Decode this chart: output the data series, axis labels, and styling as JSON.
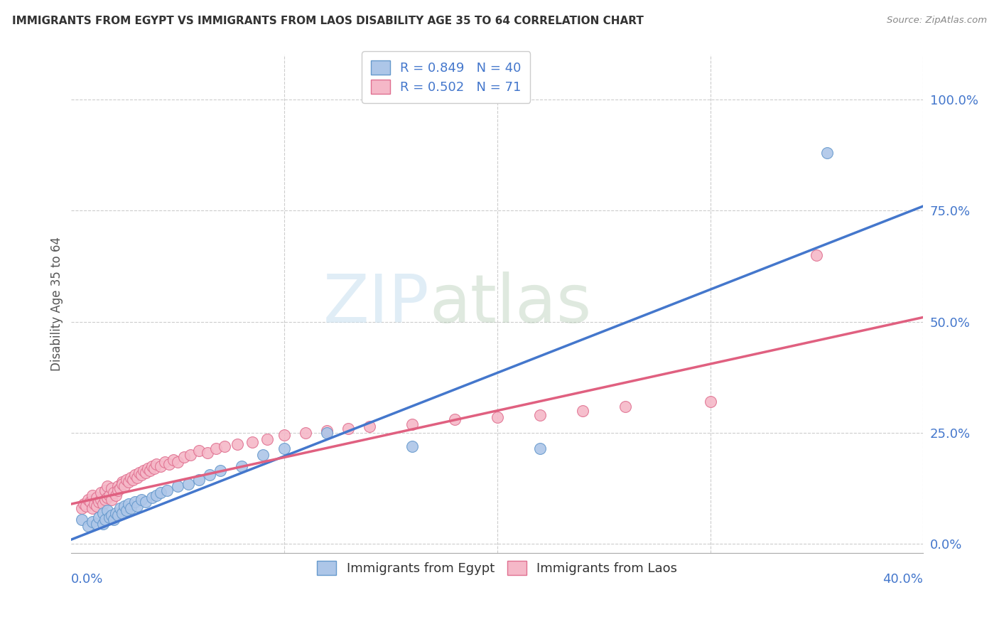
{
  "title": "IMMIGRANTS FROM EGYPT VS IMMIGRANTS FROM LAOS DISABILITY AGE 35 TO 64 CORRELATION CHART",
  "source": "Source: ZipAtlas.com",
  "ylabel": "Disability Age 35 to 64",
  "ytick_labels": [
    "0.0%",
    "25.0%",
    "50.0%",
    "75.0%",
    "100.0%"
  ],
  "ytick_values": [
    0.0,
    0.25,
    0.5,
    0.75,
    1.0
  ],
  "xlim": [
    0.0,
    0.4
  ],
  "ylim": [
    -0.02,
    1.1
  ],
  "egypt_color": "#adc6e8",
  "egypt_edge": "#6699cc",
  "laos_color": "#f5b8c8",
  "laos_edge": "#e07090",
  "egypt_line_color": "#4477cc",
  "laos_line_color": "#e06080",
  "R_egypt": 0.849,
  "N_egypt": 40,
  "R_laos": 0.502,
  "N_laos": 71,
  "watermark_zip": "ZIP",
  "watermark_atlas": "atlas",
  "egypt_line_x0": 0.0,
  "egypt_line_y0": 0.01,
  "egypt_line_x1": 0.4,
  "egypt_line_y1": 0.76,
  "laos_line_x0": 0.0,
  "laos_line_y0": 0.09,
  "laos_line_x1": 0.4,
  "laos_line_y1": 0.51,
  "egypt_x": [
    0.005,
    0.008,
    0.01,
    0.012,
    0.013,
    0.015,
    0.015,
    0.016,
    0.017,
    0.018,
    0.019,
    0.02,
    0.021,
    0.022,
    0.023,
    0.024,
    0.025,
    0.026,
    0.027,
    0.028,
    0.03,
    0.031,
    0.033,
    0.035,
    0.038,
    0.04,
    0.042,
    0.045,
    0.05,
    0.055,
    0.06,
    0.065,
    0.07,
    0.08,
    0.09,
    0.1,
    0.12,
    0.16,
    0.22,
    0.355
  ],
  "egypt_y": [
    0.055,
    0.04,
    0.05,
    0.045,
    0.06,
    0.045,
    0.07,
    0.055,
    0.075,
    0.06,
    0.065,
    0.055,
    0.07,
    0.065,
    0.08,
    0.07,
    0.085,
    0.075,
    0.09,
    0.08,
    0.095,
    0.085,
    0.1,
    0.095,
    0.105,
    0.11,
    0.115,
    0.12,
    0.13,
    0.135,
    0.145,
    0.155,
    0.165,
    0.175,
    0.2,
    0.215,
    0.25,
    0.22,
    0.215,
    0.88
  ],
  "laos_x": [
    0.005,
    0.006,
    0.007,
    0.008,
    0.009,
    0.01,
    0.01,
    0.011,
    0.012,
    0.012,
    0.013,
    0.014,
    0.014,
    0.015,
    0.016,
    0.016,
    0.017,
    0.017,
    0.018,
    0.019,
    0.019,
    0.02,
    0.021,
    0.022,
    0.022,
    0.023,
    0.024,
    0.024,
    0.025,
    0.026,
    0.027,
    0.028,
    0.029,
    0.03,
    0.031,
    0.032,
    0.033,
    0.034,
    0.035,
    0.036,
    0.037,
    0.038,
    0.039,
    0.04,
    0.042,
    0.044,
    0.046,
    0.048,
    0.05,
    0.053,
    0.056,
    0.06,
    0.064,
    0.068,
    0.072,
    0.078,
    0.085,
    0.092,
    0.1,
    0.11,
    0.12,
    0.13,
    0.14,
    0.16,
    0.18,
    0.2,
    0.22,
    0.24,
    0.26,
    0.3,
    0.35
  ],
  "laos_y": [
    0.08,
    0.09,
    0.085,
    0.1,
    0.095,
    0.08,
    0.11,
    0.09,
    0.085,
    0.105,
    0.095,
    0.1,
    0.115,
    0.09,
    0.1,
    0.12,
    0.105,
    0.13,
    0.11,
    0.1,
    0.125,
    0.115,
    0.11,
    0.13,
    0.12,
    0.125,
    0.14,
    0.135,
    0.13,
    0.145,
    0.14,
    0.15,
    0.145,
    0.155,
    0.15,
    0.16,
    0.155,
    0.165,
    0.16,
    0.17,
    0.165,
    0.175,
    0.17,
    0.18,
    0.175,
    0.185,
    0.18,
    0.19,
    0.185,
    0.195,
    0.2,
    0.21,
    0.205,
    0.215,
    0.22,
    0.225,
    0.23,
    0.235,
    0.245,
    0.25,
    0.255,
    0.26,
    0.265,
    0.27,
    0.28,
    0.285,
    0.29,
    0.3,
    0.31,
    0.32,
    0.65
  ]
}
